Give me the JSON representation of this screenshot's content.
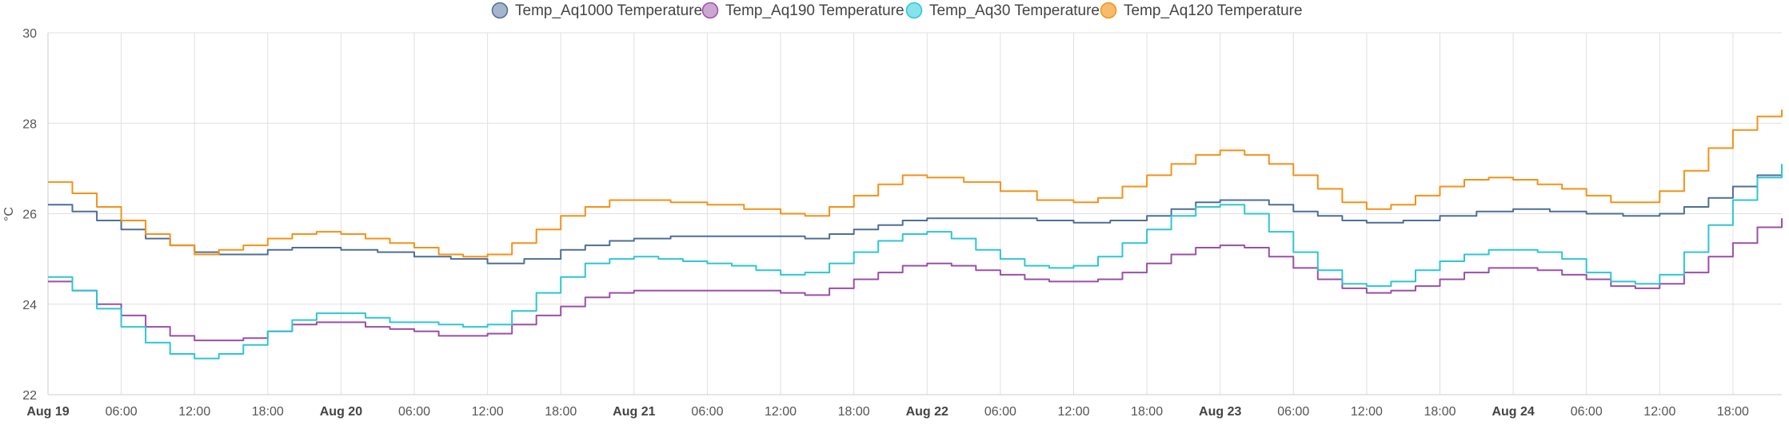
{
  "chart_data": {
    "type": "line",
    "title": "",
    "ylabel": "°C",
    "ylim": [
      22,
      30
    ],
    "y_ticks": [
      "30",
      "28",
      "26",
      "24",
      "22"
    ],
    "x_range_hours": [
      0,
      142
    ],
    "x_ticks": [
      {
        "h": 0,
        "label": "Aug 19",
        "bold": true
      },
      {
        "h": 6,
        "label": "06:00",
        "bold": false
      },
      {
        "h": 12,
        "label": "12:00",
        "bold": false
      },
      {
        "h": 18,
        "label": "18:00",
        "bold": false
      },
      {
        "h": 24,
        "label": "Aug 20",
        "bold": true
      },
      {
        "h": 30,
        "label": "06:00",
        "bold": false
      },
      {
        "h": 36,
        "label": "12:00",
        "bold": false
      },
      {
        "h": 42,
        "label": "18:00",
        "bold": false
      },
      {
        "h": 48,
        "label": "Aug 21",
        "bold": true
      },
      {
        "h": 54,
        "label": "06:00",
        "bold": false
      },
      {
        "h": 60,
        "label": "12:00",
        "bold": false
      },
      {
        "h": 66,
        "label": "18:00",
        "bold": false
      },
      {
        "h": 72,
        "label": "Aug 22",
        "bold": true
      },
      {
        "h": 78,
        "label": "06:00",
        "bold": false
      },
      {
        "h": 84,
        "label": "12:00",
        "bold": false
      },
      {
        "h": 90,
        "label": "18:00",
        "bold": false
      },
      {
        "h": 96,
        "label": "Aug 23",
        "bold": true
      },
      {
        "h": 102,
        "label": "06:00",
        "bold": false
      },
      {
        "h": 108,
        "label": "12:00",
        "bold": false
      },
      {
        "h": 114,
        "label": "18:00",
        "bold": false
      },
      {
        "h": 120,
        "label": "Aug 24",
        "bold": true
      },
      {
        "h": 126,
        "label": "06:00",
        "bold": false
      },
      {
        "h": 132,
        "label": "12:00",
        "bold": false
      },
      {
        "h": 138,
        "label": "18:00",
        "bold": false
      }
    ],
    "series": [
      {
        "name": "Temp_Aq1000 Temperature",
        "color": "#4e6f96",
        "legend_fill": "#a4b5cc",
        "points": [
          [
            0,
            26.2
          ],
          [
            2,
            26.05
          ],
          [
            4,
            25.85
          ],
          [
            6,
            25.65
          ],
          [
            8,
            25.45
          ],
          [
            10,
            25.3
          ],
          [
            12,
            25.15
          ],
          [
            14,
            25.1
          ],
          [
            16,
            25.1
          ],
          [
            18,
            25.2
          ],
          [
            20,
            25.25
          ],
          [
            22,
            25.25
          ],
          [
            24,
            25.2
          ],
          [
            27,
            25.15
          ],
          [
            30,
            25.05
          ],
          [
            33,
            25.0
          ],
          [
            36,
            24.9
          ],
          [
            39,
            25.0
          ],
          [
            42,
            25.2
          ],
          [
            44,
            25.3
          ],
          [
            46,
            25.4
          ],
          [
            48,
            25.45
          ],
          [
            51,
            25.5
          ],
          [
            54,
            25.5
          ],
          [
            57,
            25.5
          ],
          [
            60,
            25.5
          ],
          [
            62,
            25.45
          ],
          [
            64,
            25.55
          ],
          [
            66,
            25.65
          ],
          [
            68,
            25.75
          ],
          [
            70,
            25.85
          ],
          [
            72,
            25.9
          ],
          [
            75,
            25.9
          ],
          [
            78,
            25.9
          ],
          [
            81,
            25.85
          ],
          [
            84,
            25.8
          ],
          [
            87,
            25.85
          ],
          [
            90,
            25.95
          ],
          [
            92,
            26.1
          ],
          [
            94,
            26.25
          ],
          [
            96,
            26.3
          ],
          [
            98,
            26.3
          ],
          [
            100,
            26.2
          ],
          [
            102,
            26.05
          ],
          [
            104,
            25.95
          ],
          [
            106,
            25.85
          ],
          [
            108,
            25.8
          ],
          [
            111,
            25.85
          ],
          [
            114,
            25.95
          ],
          [
            117,
            26.05
          ],
          [
            120,
            26.1
          ],
          [
            123,
            26.05
          ],
          [
            126,
            26.0
          ],
          [
            129,
            25.95
          ],
          [
            132,
            26.0
          ],
          [
            134,
            26.15
          ],
          [
            136,
            26.35
          ],
          [
            138,
            26.6
          ],
          [
            140,
            26.85
          ],
          [
            142,
            26.9
          ]
        ]
      },
      {
        "name": "Temp_Aq190 Temperature",
        "color": "#9b4fa8",
        "legend_fill": "#cda7d4",
        "points": [
          [
            0,
            24.5
          ],
          [
            2,
            24.3
          ],
          [
            4,
            24.0
          ],
          [
            6,
            23.75
          ],
          [
            8,
            23.5
          ],
          [
            10,
            23.3
          ],
          [
            12,
            23.2
          ],
          [
            14,
            23.2
          ],
          [
            16,
            23.25
          ],
          [
            18,
            23.4
          ],
          [
            20,
            23.55
          ],
          [
            22,
            23.6
          ],
          [
            24,
            23.6
          ],
          [
            26,
            23.5
          ],
          [
            28,
            23.45
          ],
          [
            30,
            23.4
          ],
          [
            32,
            23.3
          ],
          [
            34,
            23.3
          ],
          [
            36,
            23.35
          ],
          [
            38,
            23.55
          ],
          [
            40,
            23.75
          ],
          [
            42,
            23.95
          ],
          [
            44,
            24.15
          ],
          [
            46,
            24.25
          ],
          [
            48,
            24.3
          ],
          [
            51,
            24.3
          ],
          [
            54,
            24.3
          ],
          [
            57,
            24.3
          ],
          [
            60,
            24.25
          ],
          [
            62,
            24.2
          ],
          [
            64,
            24.35
          ],
          [
            66,
            24.55
          ],
          [
            68,
            24.7
          ],
          [
            70,
            24.85
          ],
          [
            72,
            24.9
          ],
          [
            74,
            24.85
          ],
          [
            76,
            24.75
          ],
          [
            78,
            24.65
          ],
          [
            80,
            24.55
          ],
          [
            82,
            24.5
          ],
          [
            84,
            24.5
          ],
          [
            86,
            24.55
          ],
          [
            88,
            24.7
          ],
          [
            90,
            24.9
          ],
          [
            92,
            25.1
          ],
          [
            94,
            25.25
          ],
          [
            96,
            25.3
          ],
          [
            98,
            25.25
          ],
          [
            100,
            25.05
          ],
          [
            102,
            24.8
          ],
          [
            104,
            24.55
          ],
          [
            106,
            24.35
          ],
          [
            108,
            24.25
          ],
          [
            110,
            24.3
          ],
          [
            112,
            24.4
          ],
          [
            114,
            24.55
          ],
          [
            116,
            24.7
          ],
          [
            118,
            24.8
          ],
          [
            120,
            24.8
          ],
          [
            122,
            24.75
          ],
          [
            124,
            24.65
          ],
          [
            126,
            24.55
          ],
          [
            128,
            24.4
          ],
          [
            130,
            24.35
          ],
          [
            132,
            24.45
          ],
          [
            134,
            24.7
          ],
          [
            136,
            25.05
          ],
          [
            138,
            25.35
          ],
          [
            140,
            25.7
          ],
          [
            142,
            25.9
          ]
        ]
      },
      {
        "name": "Temp_Aq30 Temperature",
        "color": "#2ec6d4",
        "legend_fill": "#86e3ea",
        "points": [
          [
            0,
            24.6
          ],
          [
            2,
            24.3
          ],
          [
            4,
            23.9
          ],
          [
            6,
            23.5
          ],
          [
            8,
            23.15
          ],
          [
            10,
            22.9
          ],
          [
            12,
            22.8
          ],
          [
            14,
            22.9
          ],
          [
            16,
            23.1
          ],
          [
            18,
            23.4
          ],
          [
            20,
            23.65
          ],
          [
            22,
            23.8
          ],
          [
            24,
            23.8
          ],
          [
            26,
            23.7
          ],
          [
            28,
            23.6
          ],
          [
            30,
            23.6
          ],
          [
            32,
            23.55
          ],
          [
            34,
            23.5
          ],
          [
            36,
            23.55
          ],
          [
            38,
            23.85
          ],
          [
            40,
            24.25
          ],
          [
            42,
            24.6
          ],
          [
            44,
            24.9
          ],
          [
            46,
            25.0
          ],
          [
            48,
            25.05
          ],
          [
            50,
            25.0
          ],
          [
            52,
            24.95
          ],
          [
            54,
            24.9
          ],
          [
            56,
            24.85
          ],
          [
            58,
            24.75
          ],
          [
            60,
            24.65
          ],
          [
            62,
            24.7
          ],
          [
            64,
            24.9
          ],
          [
            66,
            25.15
          ],
          [
            68,
            25.4
          ],
          [
            70,
            25.55
          ],
          [
            72,
            25.6
          ],
          [
            74,
            25.45
          ],
          [
            76,
            25.2
          ],
          [
            78,
            25.0
          ],
          [
            80,
            24.85
          ],
          [
            82,
            24.8
          ],
          [
            84,
            24.85
          ],
          [
            86,
            25.05
          ],
          [
            88,
            25.35
          ],
          [
            90,
            25.65
          ],
          [
            92,
            25.95
          ],
          [
            94,
            26.15
          ],
          [
            96,
            26.2
          ],
          [
            98,
            26.0
          ],
          [
            100,
            25.6
          ],
          [
            102,
            25.15
          ],
          [
            104,
            24.75
          ],
          [
            106,
            24.45
          ],
          [
            108,
            24.4
          ],
          [
            110,
            24.5
          ],
          [
            112,
            24.75
          ],
          [
            114,
            24.95
          ],
          [
            116,
            25.1
          ],
          [
            118,
            25.2
          ],
          [
            120,
            25.2
          ],
          [
            122,
            25.15
          ],
          [
            124,
            25.0
          ],
          [
            126,
            24.7
          ],
          [
            128,
            24.5
          ],
          [
            130,
            24.45
          ],
          [
            132,
            24.65
          ],
          [
            134,
            25.15
          ],
          [
            136,
            25.75
          ],
          [
            138,
            26.3
          ],
          [
            140,
            26.8
          ],
          [
            142,
            27.1
          ]
        ]
      },
      {
        "name": "Temp_Aq120 Temperature",
        "color": "#f39218",
        "legend_fill": "#f7bb6c",
        "points": [
          [
            0,
            26.7
          ],
          [
            2,
            26.45
          ],
          [
            4,
            26.15
          ],
          [
            6,
            25.85
          ],
          [
            8,
            25.55
          ],
          [
            10,
            25.3
          ],
          [
            12,
            25.1
          ],
          [
            14,
            25.2
          ],
          [
            16,
            25.3
          ],
          [
            18,
            25.45
          ],
          [
            20,
            25.55
          ],
          [
            22,
            25.6
          ],
          [
            24,
            25.55
          ],
          [
            26,
            25.45
          ],
          [
            28,
            25.35
          ],
          [
            30,
            25.25
          ],
          [
            32,
            25.1
          ],
          [
            34,
            25.05
          ],
          [
            36,
            25.1
          ],
          [
            38,
            25.35
          ],
          [
            40,
            25.65
          ],
          [
            42,
            25.95
          ],
          [
            44,
            26.15
          ],
          [
            46,
            26.3
          ],
          [
            48,
            26.3
          ],
          [
            51,
            26.25
          ],
          [
            54,
            26.2
          ],
          [
            57,
            26.1
          ],
          [
            60,
            26.0
          ],
          [
            62,
            25.95
          ],
          [
            64,
            26.15
          ],
          [
            66,
            26.4
          ],
          [
            68,
            26.65
          ],
          [
            70,
            26.85
          ],
          [
            72,
            26.8
          ],
          [
            75,
            26.7
          ],
          [
            78,
            26.5
          ],
          [
            81,
            26.3
          ],
          [
            84,
            26.25
          ],
          [
            86,
            26.35
          ],
          [
            88,
            26.6
          ],
          [
            90,
            26.85
          ],
          [
            92,
            27.1
          ],
          [
            94,
            27.3
          ],
          [
            96,
            27.4
          ],
          [
            98,
            27.3
          ],
          [
            100,
            27.1
          ],
          [
            102,
            26.85
          ],
          [
            104,
            26.55
          ],
          [
            106,
            26.25
          ],
          [
            108,
            26.1
          ],
          [
            110,
            26.2
          ],
          [
            112,
            26.4
          ],
          [
            114,
            26.6
          ],
          [
            116,
            26.75
          ],
          [
            118,
            26.8
          ],
          [
            120,
            26.75
          ],
          [
            122,
            26.65
          ],
          [
            124,
            26.55
          ],
          [
            126,
            26.4
          ],
          [
            128,
            26.25
          ],
          [
            130,
            26.25
          ],
          [
            132,
            26.5
          ],
          [
            134,
            26.95
          ],
          [
            136,
            27.45
          ],
          [
            138,
            27.85
          ],
          [
            140,
            28.15
          ],
          [
            142,
            28.3
          ]
        ]
      }
    ]
  }
}
